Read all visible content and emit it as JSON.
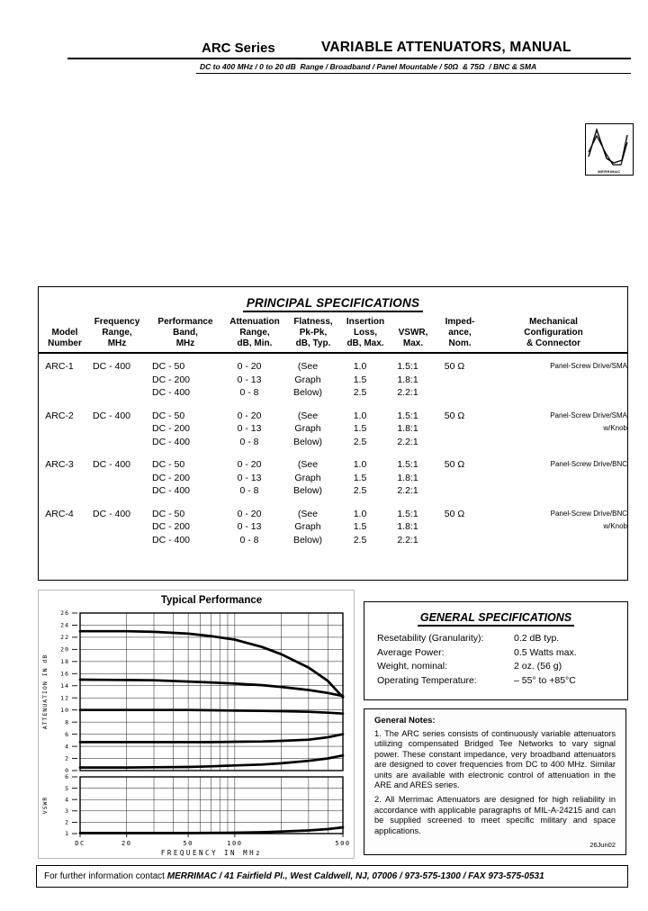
{
  "header": {
    "series": "ARC Series",
    "title": "VARIABLE ATTENUATORS, MANUAL",
    "subtitle": "DC to 400 MHz / 0 to 20 dB  Range / Broadband / Panel Mountable / 50Ω  & 75Ω  / BNC & SMA"
  },
  "logo": {
    "caption": "MERRIMAC"
  },
  "spec_table": {
    "title": "PRINCIPAL SPECIFICATIONS",
    "columns": [
      [
        "Model",
        "Number"
      ],
      [
        "Frequency",
        "Range,",
        "MHz"
      ],
      [
        "Performance",
        "Band,",
        "MHz"
      ],
      [
        "Attenuation",
        "Range,",
        "dB, Min."
      ],
      [
        "Flatness,",
        "Pk-Pk,",
        "dB, Typ."
      ],
      [
        "Insertion",
        "Loss,",
        "dB, Max."
      ],
      [
        "VSWR,",
        "Max."
      ],
      [
        "Imped-",
        "ance,",
        "Nom."
      ],
      [
        "Mechanical",
        "Configuration",
        "& Connector"
      ]
    ],
    "rows": [
      {
        "model": "ARC-1",
        "freq": "DC - 400",
        "band": [
          "DC - 50",
          "DC - 200",
          "DC - 400"
        ],
        "atten": [
          "0 - 20",
          "0 - 13",
          "0 - 8"
        ],
        "flatness": [
          "(See",
          "Graph",
          "Below)"
        ],
        "loss": [
          "1.0",
          "1.5",
          "2.5"
        ],
        "vswr": [
          "1.5:1",
          "1.8:1",
          "2.2:1"
        ],
        "impedance": "50 Ω",
        "mech": [
          "Panel-Screw Drive/SMA"
        ]
      },
      {
        "model": "ARC-2",
        "freq": "DC - 400",
        "band": [
          "DC - 50",
          "DC - 200",
          "DC - 400"
        ],
        "atten": [
          "0 - 20",
          "0 - 13",
          "0 - 8"
        ],
        "flatness": [
          "(See",
          "Graph",
          "Below)"
        ],
        "loss": [
          "1.0",
          "1.5",
          "2.5"
        ],
        "vswr": [
          "1.5:1",
          "1.8:1",
          "2.2:1"
        ],
        "impedance": "50 Ω",
        "mech": [
          "Panel-Screw Drive/SMA",
          "w/Knob"
        ]
      },
      {
        "model": "ARC-3",
        "freq": "DC - 400",
        "band": [
          "DC - 50",
          "DC - 200",
          "DC - 400"
        ],
        "atten": [
          "0 - 20",
          "0 - 13",
          "0 - 8"
        ],
        "flatness": [
          "(See",
          "Graph",
          "Below)"
        ],
        "loss": [
          "1.0",
          "1.5",
          "2.5"
        ],
        "vswr": [
          "1.5:1",
          "1.8:1",
          "2.2:1"
        ],
        "impedance": "50 Ω",
        "mech": [
          "Panel-Screw Drive/BNC"
        ]
      },
      {
        "model": "ARC-4",
        "freq": "DC - 400",
        "band": [
          "DC - 50",
          "DC - 200",
          "DC - 400"
        ],
        "atten": [
          "0 - 20",
          "0 - 13",
          "0 - 8"
        ],
        "flatness": [
          "(See",
          "Graph",
          "Below)"
        ],
        "loss": [
          "1.0",
          "1.5",
          "2.5"
        ],
        "vswr": [
          "1.5:1",
          "1.8:1",
          "2.2:1"
        ],
        "impedance": "50 Ω",
        "mech": [
          "Panel-Screw Drive/BNC",
          "w/Knob"
        ]
      }
    ]
  },
  "chart_data": {
    "type": "line",
    "title": "Typical Performance",
    "xlabel": "FREQUENCY IN MHz",
    "x_scale": "log",
    "x_range": [
      10,
      500
    ],
    "x_ticks": [
      {
        "label": "DC",
        "f": 10
      },
      {
        "label": "20",
        "f": 20
      },
      {
        "label": "50",
        "f": 50
      },
      {
        "label": "100",
        "f": 100
      },
      {
        "label": "500",
        "f": 500
      }
    ],
    "x_gridlines": [
      20,
      30,
      40,
      50,
      60,
      70,
      80,
      90,
      100,
      200,
      300,
      400,
      500
    ],
    "panels": [
      {
        "ylabel": "ATTENUATION IN dB",
        "ylim": [
          0,
          26
        ],
        "ytick_step": 2,
        "series": [
          {
            "name": "attenuation-setting-23dB",
            "x": [
              10,
              20,
              30,
              50,
              70,
              100,
              150,
              200,
              300,
              400,
              500
            ],
            "values": [
              23,
              23,
              22.9,
              22.6,
              22.2,
              21.6,
              20.4,
              19.2,
              17.0,
              14.8,
              12.1
            ]
          },
          {
            "name": "attenuation-setting-15dB",
            "x": [
              10,
              20,
              30,
              50,
              70,
              100,
              150,
              200,
              300,
              400,
              500
            ],
            "values": [
              15,
              14.95,
              14.9,
              14.7,
              14.55,
              14.35,
              14.1,
              13.8,
              13.3,
              12.8,
              12.3
            ]
          },
          {
            "name": "attenuation-setting-10dB",
            "x": [
              10,
              20,
              30,
              50,
              70,
              100,
              150,
              200,
              300,
              400,
              500
            ],
            "values": [
              10,
              10,
              10,
              10,
              9.95,
              9.9,
              9.85,
              9.8,
              9.7,
              9.55,
              9.4
            ]
          },
          {
            "name": "attenuation-setting-5dB",
            "x": [
              10,
              20,
              30,
              50,
              70,
              100,
              150,
              200,
              300,
              400,
              500
            ],
            "values": [
              4.7,
              4.7,
              4.7,
              4.7,
              4.7,
              4.75,
              4.8,
              4.9,
              5.1,
              5.5,
              6.0
            ]
          },
          {
            "name": "minimum-insertion-loss",
            "x": [
              10,
              20,
              30,
              50,
              70,
              100,
              150,
              200,
              300,
              400,
              500
            ],
            "values": [
              0.5,
              0.5,
              0.55,
              0.6,
              0.7,
              0.85,
              1.0,
              1.2,
              1.6,
              2.0,
              2.5
            ]
          }
        ]
      },
      {
        "ylabel": "VSWR",
        "ylim": [
          1,
          6
        ],
        "ytick_step": 1,
        "series": [
          {
            "name": "vswr",
            "x": [
              10,
              20,
              30,
              50,
              70,
              100,
              150,
              200,
              300,
              400,
              500
            ],
            "values": [
              1.05,
              1.05,
              1.05,
              1.05,
              1.06,
              1.08,
              1.12,
              1.18,
              1.28,
              1.4,
              1.55
            ]
          }
        ]
      }
    ]
  },
  "general_specs": {
    "title": "GENERAL SPECIFICATIONS",
    "items": [
      {
        "label": "Resetability (Granularity):",
        "value": "0.2 dB typ."
      },
      {
        "label": "Average Power:",
        "value": "0.5 Watts max."
      },
      {
        "label": "Weight, nominal:",
        "value": "2 oz. (56 g)"
      },
      {
        "label": "Operating Temperature:",
        "value": "– 55° to +85°C"
      }
    ]
  },
  "general_notes": {
    "title": "General Notes:",
    "notes": [
      "1. The ARC series consists of continuously variable attenuators utilizing compensated Bridged Tee Networks to vary signal power. These constant impedance, very broadband attenuators are designed to cover frequencies from DC to 400 MHz. Similar units are available with electronic control of attenuation in the ARE and ARES series.",
      "2. All Merrimac Attenuators are designed for high reliability in accordance with applicable paragraphs of MIL-A-24215 and can be supplied screened to meet specific military and space applications."
    ],
    "date": "26Jun02"
  },
  "footer": {
    "prefix": "For further information contact ",
    "contact": "MERRIMAC / 41 Fairfield Pl., West Caldwell, NJ, 07006 /  973-575-1300 / FAX 973-575-0531"
  }
}
